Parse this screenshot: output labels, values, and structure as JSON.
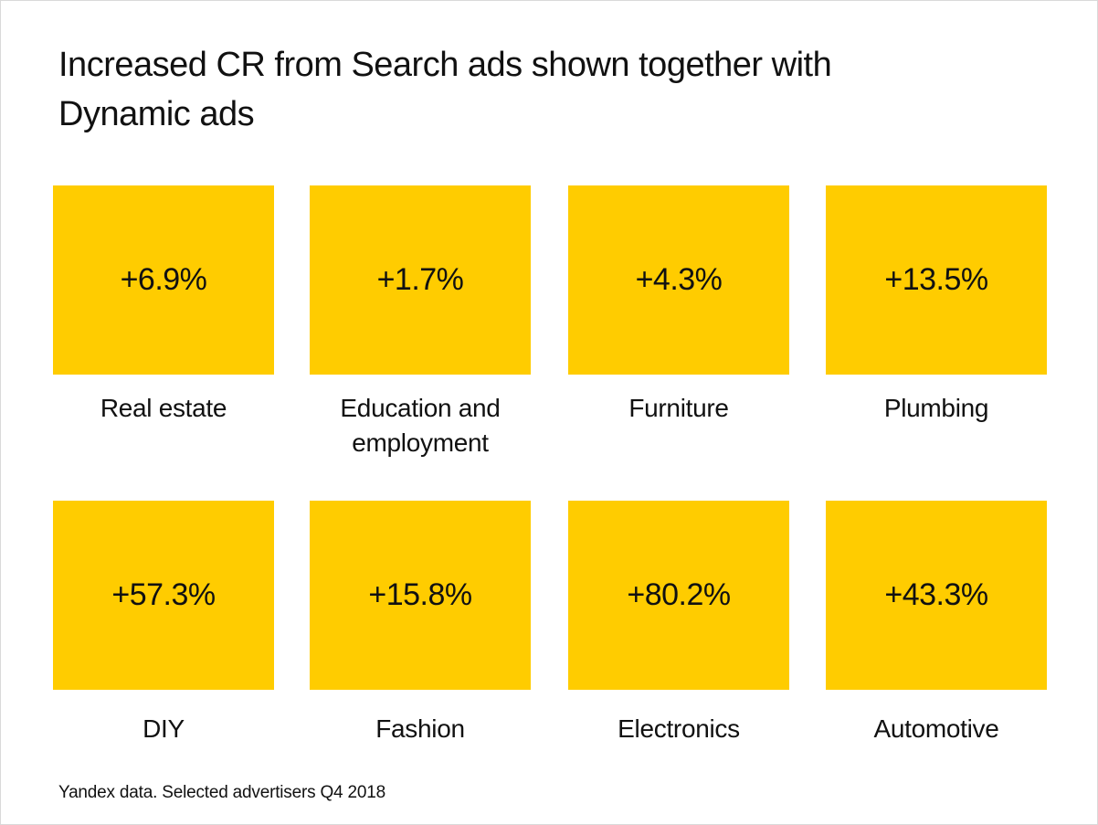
{
  "chart_data": {
    "type": "table",
    "title": "Increased CR from Search ads shown together with Dynamic ads",
    "metric": "CR increase",
    "categories": [
      "Real estate",
      "Education and employment",
      "Furniture",
      "Plumbing",
      "DIY",
      "Fashion",
      "Electronics",
      "Automotive"
    ],
    "values": [
      6.9,
      1.7,
      4.3,
      13.5,
      57.3,
      15.8,
      80.2,
      43.3
    ],
    "value_labels": [
      "+6.9%",
      "+1.7%",
      "+4.3%",
      "+13.5%",
      "+57.3%",
      "+15.8%",
      "+80.2%",
      "+43.3%"
    ],
    "tile_color": "#FFCC00",
    "footnote": "Yandex data. Selected advertisers Q4 2018"
  }
}
